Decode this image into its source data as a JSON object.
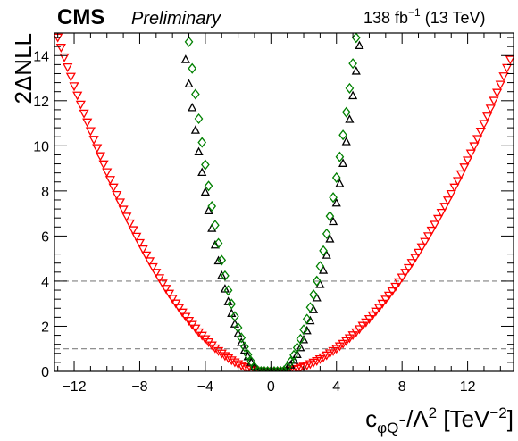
{
  "header": {
    "experiment": "CMS",
    "status": "Preliminary",
    "lumi_value": "138 fb",
    "lumi_exp": "−1",
    "energy": "(13 TeV)"
  },
  "axes": {
    "ylabel": "2ΔNLL",
    "xlabel_main": "c",
    "xlabel_sub": "φQ",
    "xlabel_mid": "-/Λ",
    "xlabel_sq": "2",
    "xlabel_unit": " [TeV",
    "xlabel_unit_exp": "−2",
    "xlabel_close": "]"
  },
  "chart_data": {
    "type": "scatter",
    "xlim": [
      -13.2,
      14.8
    ],
    "ylim": [
      0,
      15
    ],
    "xticks": [
      -12,
      -8,
      -4,
      0,
      4,
      8,
      12
    ],
    "xtick_labels": [
      "−12",
      "−8",
      "−4",
      "0",
      "4",
      "8",
      "12"
    ],
    "yticks": [
      0,
      2,
      4,
      6,
      8,
      10,
      12,
      14
    ],
    "ytick_labels": [
      "0",
      "2",
      "4",
      "6",
      "8",
      "10",
      "12",
      "14"
    ],
    "reference_lines": [
      {
        "y": 1,
        "style": "dashed",
        "color": "#808080"
      },
      {
        "y": 4,
        "style": "dashed",
        "color": "#808080"
      }
    ],
    "grid": false,
    "series": [
      {
        "marker": "triangle-down-open",
        "color": "#ff0000",
        "x": [
          -13.0,
          -12.8,
          -12.6,
          -12.4,
          -12.2,
          -12.0,
          -11.8,
          -11.6,
          -11.4,
          -11.2,
          -11.0,
          -10.8,
          -10.6,
          -10.4,
          -10.2,
          -10.0,
          -9.8,
          -9.6,
          -9.4,
          -9.2,
          -9.0,
          -8.8,
          -8.6,
          -8.4,
          -8.2,
          -8.0,
          -7.8,
          -7.6,
          -7.4,
          -7.2,
          -7.0,
          -6.8,
          -6.6,
          -6.4,
          -6.2,
          -6.0,
          -5.8,
          -5.6,
          -5.4,
          -5.2,
          -5.0,
          -4.8,
          -4.6,
          -4.4,
          -4.2,
          -4.0,
          -3.8,
          -3.6,
          -3.4,
          -3.2,
          -3.0,
          -2.8,
          -2.6,
          -2.4,
          -2.2,
          -2.0,
          -1.8,
          -1.6,
          -1.4,
          -1.2,
          -1.0,
          -0.8,
          -0.6,
          -0.4,
          -0.2,
          0.0,
          0.2,
          0.4,
          0.6,
          0.8,
          1.0,
          1.2,
          1.4,
          1.6,
          1.8,
          2.0,
          2.2,
          2.4,
          2.6,
          2.8,
          3.0,
          3.2,
          3.4,
          3.6,
          3.8,
          4.0,
          4.2,
          4.4,
          4.6,
          4.8,
          5.0,
          5.2,
          5.4,
          5.6,
          5.8,
          6.0,
          6.2,
          6.4,
          6.6,
          6.8,
          7.0,
          7.2,
          7.4,
          7.6,
          7.8,
          8.0,
          8.2,
          8.4,
          8.6,
          8.8,
          9.0,
          9.2,
          9.4,
          9.6,
          9.8,
          10.0,
          10.2,
          10.4,
          10.6,
          10.8,
          11.0,
          11.2,
          11.4,
          11.6,
          11.8,
          12.0,
          12.2,
          12.4,
          12.6,
          12.8,
          13.0,
          13.2,
          13.4,
          13.6,
          13.8,
          14.0,
          14.2,
          14.4,
          14.6
        ],
        "y": [
          14.81,
          14.36,
          13.93,
          13.49,
          13.07,
          12.65,
          12.24,
          11.84,
          11.44,
          11.05,
          10.66,
          10.28,
          9.91,
          9.55,
          9.19,
          8.84,
          8.5,
          8.16,
          7.83,
          7.5,
          7.18,
          6.87,
          6.57,
          6.27,
          5.98,
          5.7,
          5.42,
          5.15,
          4.89,
          4.63,
          4.38,
          4.14,
          3.9,
          3.67,
          3.45,
          3.23,
          3.02,
          2.82,
          2.62,
          2.43,
          2.25,
          2.07,
          1.91,
          1.74,
          1.59,
          1.44,
          1.3,
          1.16,
          1.03,
          0.91,
          0.8,
          0.69,
          0.59,
          0.5,
          0.41,
          0.33,
          0.26,
          0.2,
          0.14,
          0.09,
          0.05,
          0.02,
          0.0,
          0.0,
          0.0,
          0.0,
          0.0,
          0.0,
          0.0,
          0.01,
          0.03,
          0.05,
          0.09,
          0.12,
          0.17,
          0.22,
          0.27,
          0.33,
          0.4,
          0.47,
          0.55,
          0.63,
          0.72,
          0.81,
          0.91,
          1.01,
          1.12,
          1.23,
          1.35,
          1.48,
          1.61,
          1.74,
          1.88,
          2.03,
          2.18,
          2.33,
          2.49,
          2.66,
          2.83,
          3.01,
          3.19,
          3.37,
          3.56,
          3.76,
          3.96,
          4.17,
          4.38,
          4.59,
          4.82,
          5.04,
          5.27,
          5.51,
          5.75,
          6.0,
          6.25,
          6.51,
          6.77,
          7.04,
          7.31,
          7.59,
          7.87,
          8.16,
          8.45,
          8.75,
          9.05,
          9.36,
          9.67,
          9.99,
          10.31,
          10.64,
          10.98,
          11.31,
          11.66,
          12.01,
          12.36,
          12.72,
          13.09,
          13.46,
          13.83
        ]
      },
      {
        "marker": "triangle-up-open",
        "color": "#000000",
        "x": [
          -5.2,
          -5.0,
          -4.8,
          -4.6,
          -4.4,
          -4.2,
          -4.0,
          -3.8,
          -3.6,
          -3.4,
          -3.2,
          -3.0,
          -2.8,
          -2.6,
          -2.4,
          -2.2,
          -2.0,
          -1.8,
          -1.6,
          -1.4,
          -1.2,
          -1.0,
          -0.8,
          -0.6,
          -0.4,
          -0.2,
          0.0,
          0.2,
          0.4,
          0.6,
          0.8,
          1.0,
          1.2,
          1.4,
          1.6,
          1.8,
          2.0,
          2.2,
          2.4,
          2.6,
          2.8,
          3.0,
          3.2,
          3.4,
          3.6,
          3.8,
          4.0,
          4.2,
          4.4,
          4.6,
          4.8,
          5.0,
          5.2,
          5.4,
          5.6
        ],
        "y": [
          13.83,
          12.75,
          11.7,
          10.7,
          9.74,
          8.83,
          7.96,
          7.13,
          6.35,
          5.61,
          4.91,
          4.26,
          3.66,
          3.1,
          2.58,
          2.11,
          1.68,
          1.29,
          0.95,
          0.66,
          0.41,
          0.22,
          0.06,
          0.0,
          0.0,
          0.0,
          0.0,
          0.0,
          0.0,
          0.0,
          0.0,
          0.13,
          0.29,
          0.5,
          0.76,
          1.06,
          1.41,
          1.81,
          2.25,
          2.74,
          3.27,
          3.86,
          4.49,
          5.16,
          5.88,
          6.65,
          7.47,
          8.33,
          9.23,
          10.19,
          11.18,
          12.23,
          13.32,
          14.45,
          15.63
        ]
      },
      {
        "marker": "diamond-open",
        "color": "#008000",
        "x": [
          -5.0,
          -4.8,
          -4.6,
          -4.4,
          -4.2,
          -4.0,
          -3.8,
          -3.6,
          -3.4,
          -3.2,
          -3.0,
          -2.8,
          -2.6,
          -2.4,
          -2.2,
          -2.0,
          -1.8,
          -1.6,
          -1.4,
          -1.2,
          -1.0,
          -0.8,
          -0.6,
          -0.4,
          -0.2,
          0.0,
          0.2,
          0.4,
          0.6,
          0.8,
          1.0,
          1.2,
          1.4,
          1.6,
          1.8,
          2.0,
          2.2,
          2.4,
          2.6,
          2.8,
          3.0,
          3.2,
          3.4,
          3.6,
          3.8,
          4.0,
          4.2,
          4.4,
          4.6,
          4.8,
          5.0,
          5.2,
          5.4
        ],
        "y": [
          14.61,
          13.43,
          12.29,
          11.2,
          10.15,
          9.16,
          8.22,
          7.32,
          6.48,
          5.68,
          4.93,
          4.24,
          3.59,
          2.99,
          2.44,
          1.94,
          1.49,
          1.09,
          0.74,
          0.44,
          0.19,
          0.03,
          0.0,
          0.0,
          0.0,
          0.0,
          0.0,
          0.0,
          0.0,
          0.03,
          0.19,
          0.43,
          0.72,
          1.05,
          1.43,
          1.85,
          2.32,
          2.84,
          3.4,
          4.01,
          4.66,
          5.35,
          6.1,
          6.88,
          7.71,
          8.59,
          9.51,
          10.48,
          11.49,
          12.55,
          13.65,
          14.79,
          15.98
        ]
      }
    ]
  }
}
